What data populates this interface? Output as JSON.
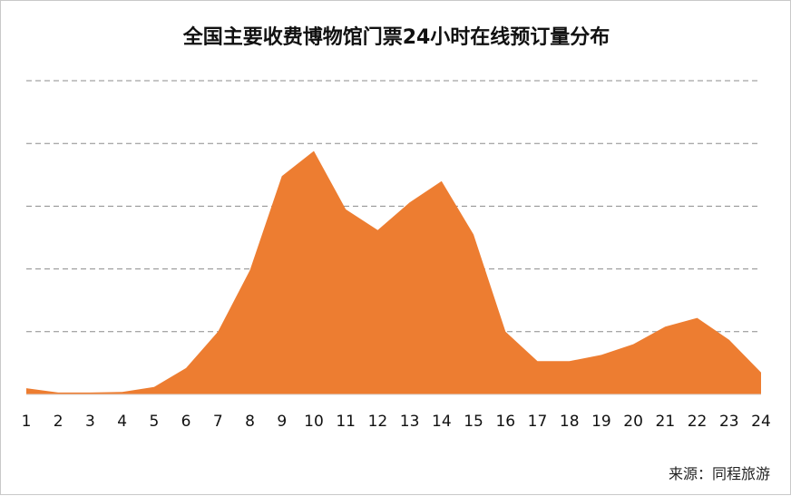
{
  "chart_data": {
    "type": "area",
    "title": "全国主要收费博物馆门票24小时在线预订量分布",
    "source": "来源：同程旅游",
    "x": [
      "1",
      "2",
      "3",
      "4",
      "5",
      "6",
      "7",
      "8",
      "9",
      "10",
      "11",
      "12",
      "13",
      "14",
      "15",
      "16",
      "17",
      "18",
      "19",
      "20",
      "21",
      "22",
      "23",
      "24"
    ],
    "values": [
      1.0,
      0.3,
      0.3,
      0.4,
      1.2,
      4.2,
      10.0,
      19.8,
      34.8,
      38.8,
      29.5,
      26.2,
      30.6,
      34.0,
      25.5,
      10.0,
      5.3,
      5.3,
      6.3,
      8.0,
      10.8,
      12.2,
      8.7,
      3.5
    ],
    "ylim": [
      0,
      50
    ],
    "grid": true,
    "color": "#ED7D31"
  }
}
